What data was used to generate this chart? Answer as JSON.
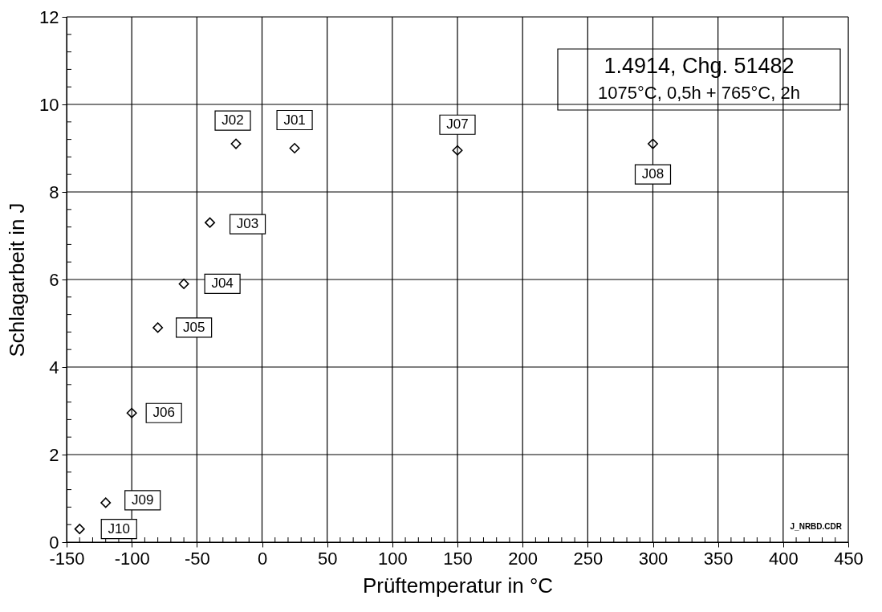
{
  "chart_data": {
    "type": "scatter",
    "title": "1.4914,  Chg. 51482",
    "subtitle": "1075°C, 0,5h + 765°C, 2h",
    "xlabel": "Prüftemperatur in °C",
    "ylabel": "Schlagarbeit in J",
    "x": [
      -140,
      -120,
      -100,
      -80,
      -60,
      -40,
      -20,
      25,
      150,
      300
    ],
    "series": [
      {
        "color": "#000000",
        "values": [
          0.3,
          0.9,
          2.95,
          4.9,
          5.9,
          7.3,
          9.1,
          9.0,
          8.95,
          9.1
        ]
      }
    ],
    "marker": "diamond",
    "grid": true,
    "legend": false,
    "xlim": [
      -150,
      450
    ],
    "ylim": [
      0,
      12
    ],
    "xticks": [
      -150,
      -100,
      -50,
      0,
      50,
      100,
      150,
      200,
      250,
      300,
      350,
      400,
      450,
      {
        "value": -140,
        "label": null
      },
      {
        "value": -130,
        "label": null
      },
      {
        "value": -120,
        "label": null
      },
      {
        "value": -110,
        "label": null
      },
      {
        "value": -90,
        "label": null
      },
      {
        "value": -80,
        "label": null
      },
      {
        "value": -70,
        "label": null
      },
      {
        "value": -60,
        "label": null
      },
      {
        "value": -40,
        "label": null
      },
      {
        "value": -30,
        "label": null
      },
      {
        "value": -20,
        "label": null
      },
      {
        "value": -10,
        "label": null
      },
      {
        "value": 10,
        "label": null
      },
      {
        "value": 20,
        "label": null
      },
      {
        "value": 30,
        "label": null
      },
      {
        "value": 40,
        "label": null
      },
      {
        "value": 60,
        "label": null
      },
      {
        "value": 70,
        "label": null
      },
      {
        "value": 80,
        "label": null
      },
      {
        "value": 90,
        "label": null
      },
      {
        "value": 110,
        "label": null
      },
      {
        "value": 120,
        "label": null
      },
      {
        "value": 130,
        "label": null
      },
      {
        "value": 140,
        "label": null
      },
      {
        "value": 160,
        "label": null
      },
      {
        "value": 170,
        "label": null
      },
      {
        "value": 180,
        "label": null
      },
      {
        "value": 190,
        "label": null
      },
      {
        "value": 210,
        "label": null
      },
      {
        "value": 220,
        "label": null
      },
      {
        "value": 230,
        "label": null
      },
      {
        "value": 240,
        "label": null
      },
      {
        "value": 260,
        "label": null
      },
      {
        "value": 270,
        "label": null
      },
      {
        "value": 280,
        "label": null
      },
      {
        "value": 290,
        "label": null
      },
      {
        "value": 310,
        "label": null
      },
      {
        "value": 320,
        "label": null
      },
      {
        "value": 330,
        "label": null
      },
      {
        "value": 340,
        "label": null
      },
      {
        "value": 360,
        "label": null
      },
      {
        "value": 370,
        "label": null
      },
      {
        "value": 380,
        "label": null
      },
      {
        "value": 390,
        "label": null
      },
      {
        "value": 410,
        "label": null
      },
      {
        "value": 420,
        "label": null
      },
      {
        "value": 430,
        "label": null
      },
      {
        "value": 440,
        "label": null
      }
    ],
    "yticks": [
      0,
      2,
      4,
      6,
      8,
      10,
      12,
      {
        "value": 0.4,
        "label": null
      },
      {
        "value": 0.8,
        "label": null
      },
      {
        "value": 1.2,
        "label": null
      },
      {
        "value": 1.6,
        "label": null
      },
      {
        "value": 2.4,
        "label": null
      },
      {
        "value": 2.8,
        "label": null
      },
      {
        "value": 3.2,
        "label": null
      },
      {
        "value": 3.6,
        "label": null
      },
      {
        "value": 4.4,
        "label": null
      },
      {
        "value": 4.8,
        "label": null
      },
      {
        "value": 5.2,
        "label": null
      },
      {
        "value": 5.6,
        "label": null
      },
      {
        "value": 6.4,
        "label": null
      },
      {
        "value": 6.8,
        "label": null
      },
      {
        "value": 7.2,
        "label": null
      },
      {
        "value": 7.6,
        "label": null
      },
      {
        "value": 8.4,
        "label": null
      },
      {
        "value": 8.8,
        "label": null
      },
      {
        "value": 9.2,
        "label": null
      },
      {
        "value": 9.6,
        "label": null
      },
      {
        "value": 10.4,
        "label": null
      },
      {
        "value": 10.8,
        "label": null
      },
      {
        "value": 11.2,
        "label": null
      },
      {
        "value": 11.6,
        "label": null
      }
    ],
    "annotations": [
      {
        "text": "J10",
        "x": -140,
        "y": 0.3
      },
      {
        "text": "J09",
        "x": -120,
        "y": 0.9
      },
      {
        "text": "J06",
        "x": -100,
        "y": 2.95
      },
      {
        "text": "J05",
        "x": -80,
        "y": 4.9
      },
      {
        "text": "J04",
        "x": -60,
        "y": 5.9
      },
      {
        "text": "J03",
        "x": -40,
        "y": 7.3
      },
      {
        "text": "J02",
        "x": -20,
        "y": 9.1
      },
      {
        "text": "J01",
        "x": 25,
        "y": 9.0
      },
      {
        "text": "J07",
        "x": 150,
        "y": 8.95
      },
      {
        "text": "J08",
        "x": 300,
        "y": 9.1
      },
      "J_NRBD.CDR"
    ]
  }
}
